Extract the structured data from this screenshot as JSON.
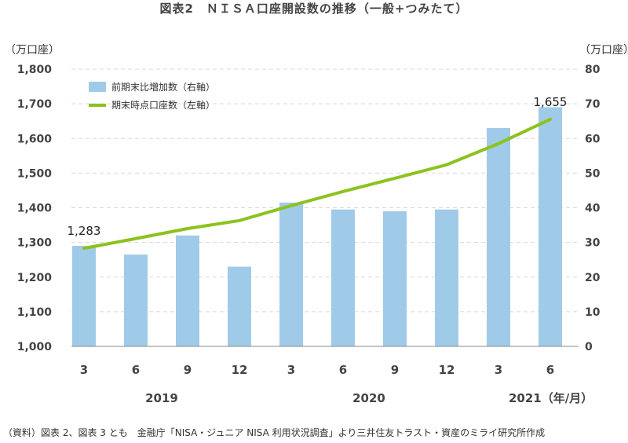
{
  "title": "図表2　ＮＩＳＡ口座開設数の推移（一般+つみたて）",
  "source": "（資料）図表 2、図表 3 とも　金融庁「NISA・ジュニア NISA 利用状況調査」より三井住友トラスト・資産のミライ研究所作成",
  "chart_data": {
    "type": "bar+line",
    "categories": [
      "3",
      "6",
      "9",
      "12",
      "3",
      "6",
      "9",
      "12",
      "3",
      "6"
    ],
    "years": [
      "2019",
      "2020",
      "2021（年/月）"
    ],
    "left_axis": {
      "unit": "（万口座）",
      "ylim": [
        1000,
        1800
      ],
      "ticks": [
        "1,000",
        "1,100",
        "1,200",
        "1,300",
        "1,400",
        "1,500",
        "1,600",
        "1,700",
        "1,800"
      ]
    },
    "right_axis": {
      "unit": "（万口座）",
      "ylim": [
        0,
        80
      ],
      "ticks": [
        "0",
        "10",
        "20",
        "30",
        "40",
        "50",
        "60",
        "70",
        "80"
      ]
    },
    "grid": true,
    "legend_placement": "top-left",
    "series": [
      {
        "name": "前期末比増加数（右軸）",
        "type": "bar",
        "axis": "right",
        "color": "#a0cbe8",
        "values": [
          29,
          26.5,
          32,
          23,
          41.5,
          39.5,
          39,
          39.5,
          63,
          69
        ]
      },
      {
        "name": "期末時点口座数（左軸）",
        "type": "line",
        "axis": "left",
        "color": "#8cc21f",
        "values": [
          1283,
          1311,
          1340,
          1363,
          1406,
          1447,
          1485,
          1524,
          1585,
          1655
        ]
      }
    ],
    "annotations": [
      {
        "index": 0,
        "label": "1,283"
      },
      {
        "index": 9,
        "label": "1,655"
      }
    ]
  }
}
